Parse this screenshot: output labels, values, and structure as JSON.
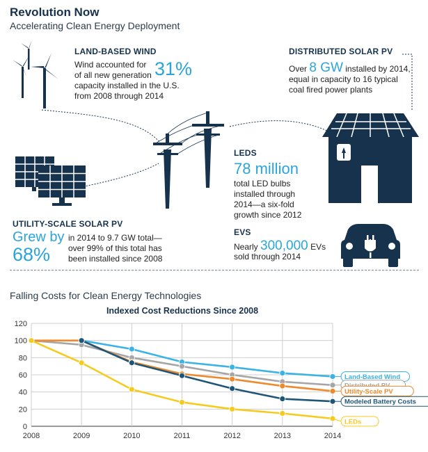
{
  "header": {
    "title": "Revolution Now",
    "subtitle": "Accelerating Clean Energy Deployment"
  },
  "facts": {
    "wind": {
      "heading": "LAND-BASED WIND",
      "line1": "Wind accounted for",
      "line2": "of all new generation",
      "big": "31%",
      "line3": "capacity installed in the U.S.",
      "line4": "from 2008 through 2014"
    },
    "distributed_pv": {
      "heading": "DISTRIBUTED SOLAR PV",
      "pre": "Over",
      "big": "8 GW",
      "post": "installed by 2014,",
      "line2": "equal in capacity to 16 typical",
      "line3": "coal fired power plants"
    },
    "leds": {
      "heading": "LEDS",
      "big": "78 million",
      "line1": "total LED bulbs",
      "line2": "installed through",
      "line3": "2014—a six-fold",
      "line4": "growth since 2012"
    },
    "utility_pv": {
      "heading": "UTILITY-SCALE SOLAR PV",
      "big1": "Grew by",
      "big2": "68%",
      "line1": "in 2014 to 9.7 GW total—",
      "line2": "over 99% of this total has",
      "line3": "been installed since 2008"
    },
    "evs": {
      "heading": "EVS",
      "pre": "Nearly",
      "big": "300,000",
      "post": "EVs",
      "line2": "sold through 2014"
    }
  },
  "colors": {
    "navy": "#17324d",
    "accent": "#2aa5dc",
    "wind": "#3bb3e4",
    "distributed_pv": "#a6a6a6",
    "utility_pv": "#ee8a2c",
    "battery": "#1f5678",
    "leds": "#f5cb1f"
  },
  "section_title": "Falling Costs for Clean Energy Technologies",
  "chart_data": {
    "type": "line",
    "title": "Indexed Cost Reductions Since 2008",
    "xlabel": "",
    "ylabel": "",
    "x": [
      2008,
      2009,
      2010,
      2011,
      2012,
      2013,
      2014
    ],
    "ylim": [
      0,
      120
    ],
    "yticks": [
      0,
      20,
      40,
      60,
      80,
      100,
      120
    ],
    "grid": true,
    "legend": "right",
    "series": [
      {
        "name": "Land-Based Wind",
        "color": "#3bb3e4",
        "values": [
          null,
          100,
          90,
          75,
          69,
          62,
          58
        ]
      },
      {
        "name": "Distributed PV",
        "color": "#a6a6a6",
        "values": [
          100,
          95,
          80,
          70,
          60,
          52,
          48
        ]
      },
      {
        "name": "Utility-Scale PV",
        "color": "#ee8a2c",
        "values": [
          100,
          100,
          75,
          61,
          55,
          47,
          41
        ]
      },
      {
        "name": "Modeled Battery Costs",
        "color": "#1f5678",
        "values": [
          null,
          100,
          74,
          59,
          44,
          32,
          29
        ]
      },
      {
        "name": "LEDs",
        "color": "#f5cb1f",
        "values": [
          100,
          74,
          43,
          28,
          20,
          15,
          9
        ]
      }
    ]
  }
}
